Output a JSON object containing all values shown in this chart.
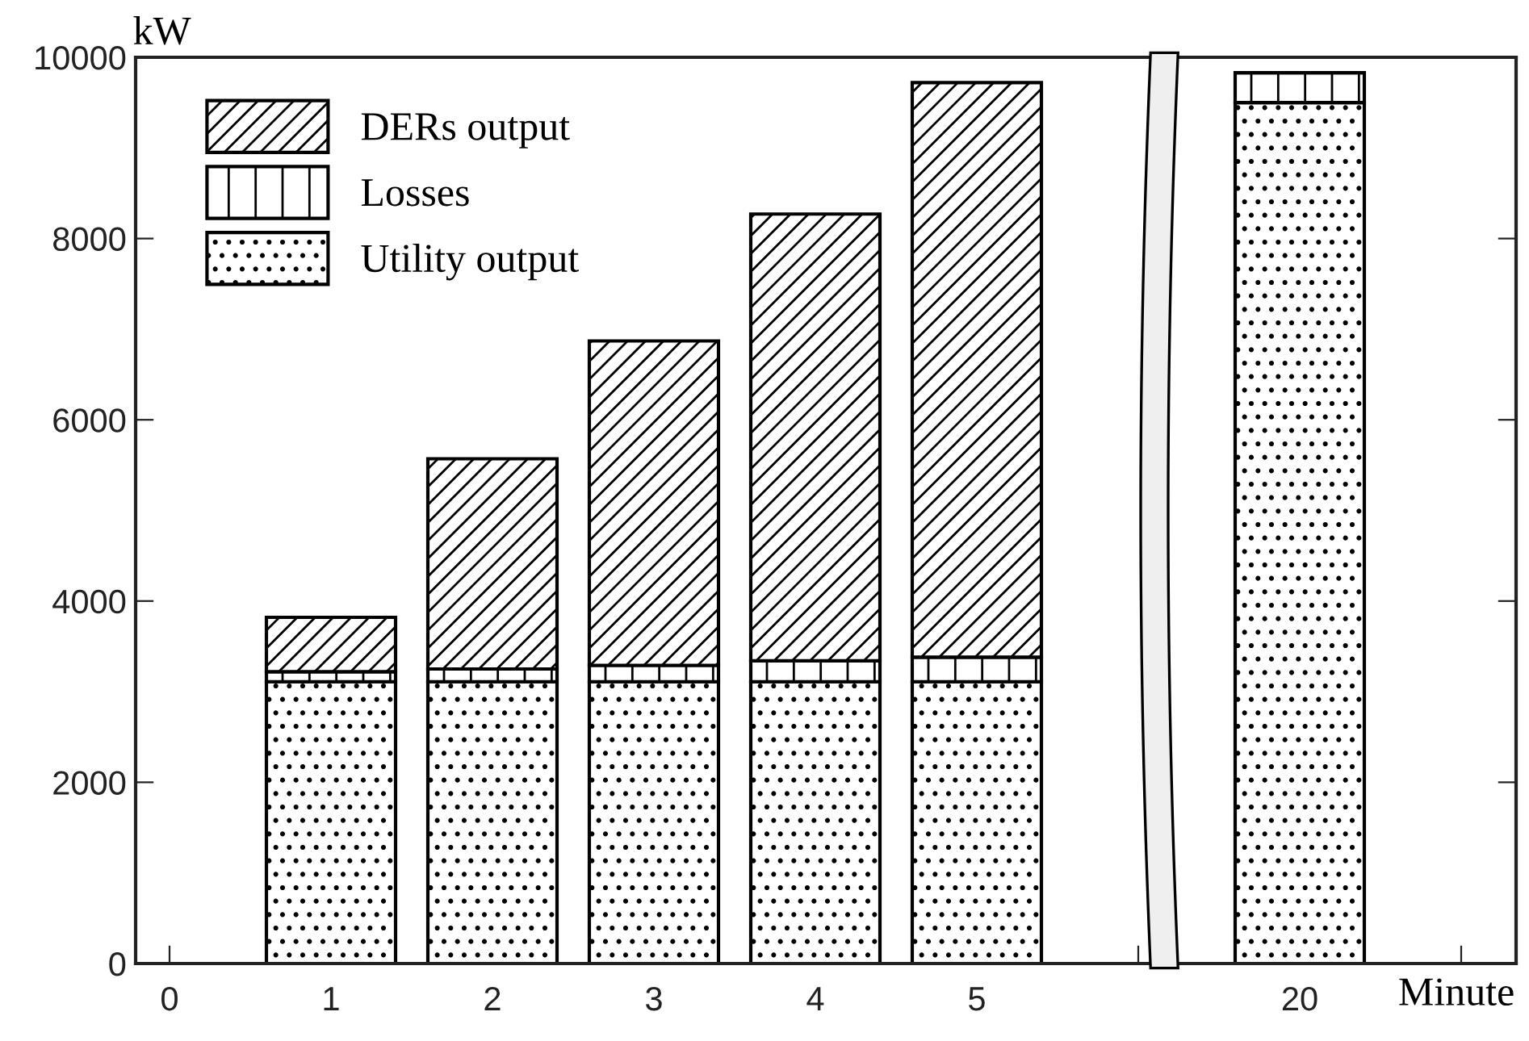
{
  "chart_data": {
    "type": "bar",
    "stacked": true,
    "xlabel": "Minute",
    "ylabel": "kW",
    "categories": [
      "0",
      "1",
      "2",
      "3",
      "4",
      "5",
      null,
      "20",
      null
    ],
    "series": [
      {
        "name": "Utility output",
        "values": [
          null,
          3110,
          3110,
          3110,
          3110,
          3110,
          null,
          9500,
          null
        ]
      },
      {
        "name": "Losses",
        "values": [
          null,
          110,
          140,
          180,
          230,
          270,
          null,
          330,
          null
        ]
      },
      {
        "name": "DERs output",
        "values": [
          null,
          600,
          2320,
          3580,
          4930,
          6340,
          null,
          0,
          null
        ]
      }
    ],
    "ylim": [
      0,
      10000
    ],
    "yticks": [
      0,
      2000,
      4000,
      6000,
      8000,
      10000
    ],
    "grid": false,
    "legend": "top left"
  }
}
